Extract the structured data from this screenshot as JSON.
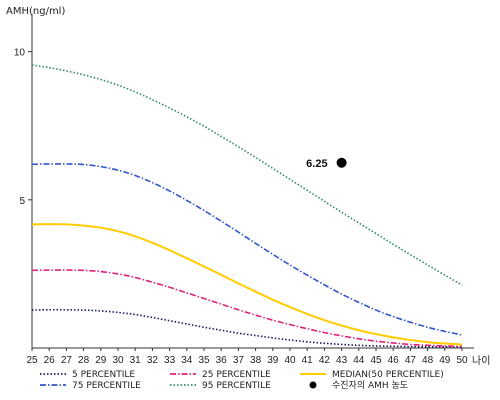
{
  "chart_data": {
    "type": "line",
    "ylabel": "AMH(ng/ml)",
    "xlabel": "나이",
    "x": [
      25,
      26,
      27,
      28,
      29,
      30,
      31,
      32,
      33,
      34,
      35,
      36,
      37,
      38,
      39,
      40,
      41,
      42,
      43,
      44,
      45,
      46,
      47,
      48,
      49,
      50
    ],
    "xlim": [
      25,
      50
    ],
    "ylim": [
      0,
      11
    ],
    "yticks": [
      5,
      10
    ],
    "series": [
      {
        "name": "5 PERCENTILE",
        "color": "#1a1a66",
        "style": "dotted",
        "values": [
          1.28,
          1.29,
          1.29,
          1.28,
          1.25,
          1.2,
          1.13,
          1.03,
          0.92,
          0.81,
          0.7,
          0.6,
          0.5,
          0.42,
          0.34,
          0.27,
          0.21,
          0.16,
          0.12,
          0.09,
          0.07,
          0.06,
          0.05,
          0.04,
          0.04,
          0.03
        ]
      },
      {
        "name": "25 PERCENTILE",
        "color": "#e0207a",
        "style": "dashdot",
        "values": [
          2.62,
          2.63,
          2.63,
          2.62,
          2.58,
          2.5,
          2.38,
          2.22,
          2.05,
          1.86,
          1.67,
          1.48,
          1.29,
          1.11,
          0.94,
          0.79,
          0.65,
          0.52,
          0.41,
          0.31,
          0.23,
          0.17,
          0.12,
          0.09,
          0.07,
          0.05
        ]
      },
      {
        "name": "MEDIAN(50 PERCENTILE)",
        "color": "#ffcc00",
        "style": "solid",
        "values": [
          4.17,
          4.18,
          4.17,
          4.13,
          4.06,
          3.94,
          3.77,
          3.55,
          3.3,
          3.03,
          2.75,
          2.47,
          2.18,
          1.9,
          1.63,
          1.38,
          1.15,
          0.94,
          0.76,
          0.6,
          0.47,
          0.36,
          0.27,
          0.2,
          0.15,
          0.12
        ]
      },
      {
        "name": "75 PERCENTILE",
        "color": "#3355cc",
        "style": "dashdot",
        "values": [
          6.2,
          6.21,
          6.21,
          6.19,
          6.12,
          6.0,
          5.82,
          5.58,
          5.3,
          4.98,
          4.64,
          4.28,
          3.91,
          3.53,
          3.16,
          2.8,
          2.46,
          2.13,
          1.82,
          1.54,
          1.28,
          1.06,
          0.87,
          0.7,
          0.56,
          0.44
        ]
      },
      {
        "name": "95 PERCENTILE",
        "color": "#2e8b57",
        "style": "dotted",
        "values": [
          9.55,
          9.46,
          9.35,
          9.22,
          9.06,
          8.87,
          8.64,
          8.38,
          8.1,
          7.8,
          7.48,
          7.14,
          6.79,
          6.43,
          6.06,
          5.69,
          5.32,
          4.95,
          4.58,
          4.22,
          3.86,
          3.5,
          3.15,
          2.8,
          2.46,
          2.12
        ]
      }
    ],
    "patient": {
      "name": "수진자의 AMH 농도",
      "x": 43,
      "y": 6.25,
      "label": "6.25",
      "color": "#000000"
    },
    "legend_position": "bottom",
    "grid": false
  }
}
